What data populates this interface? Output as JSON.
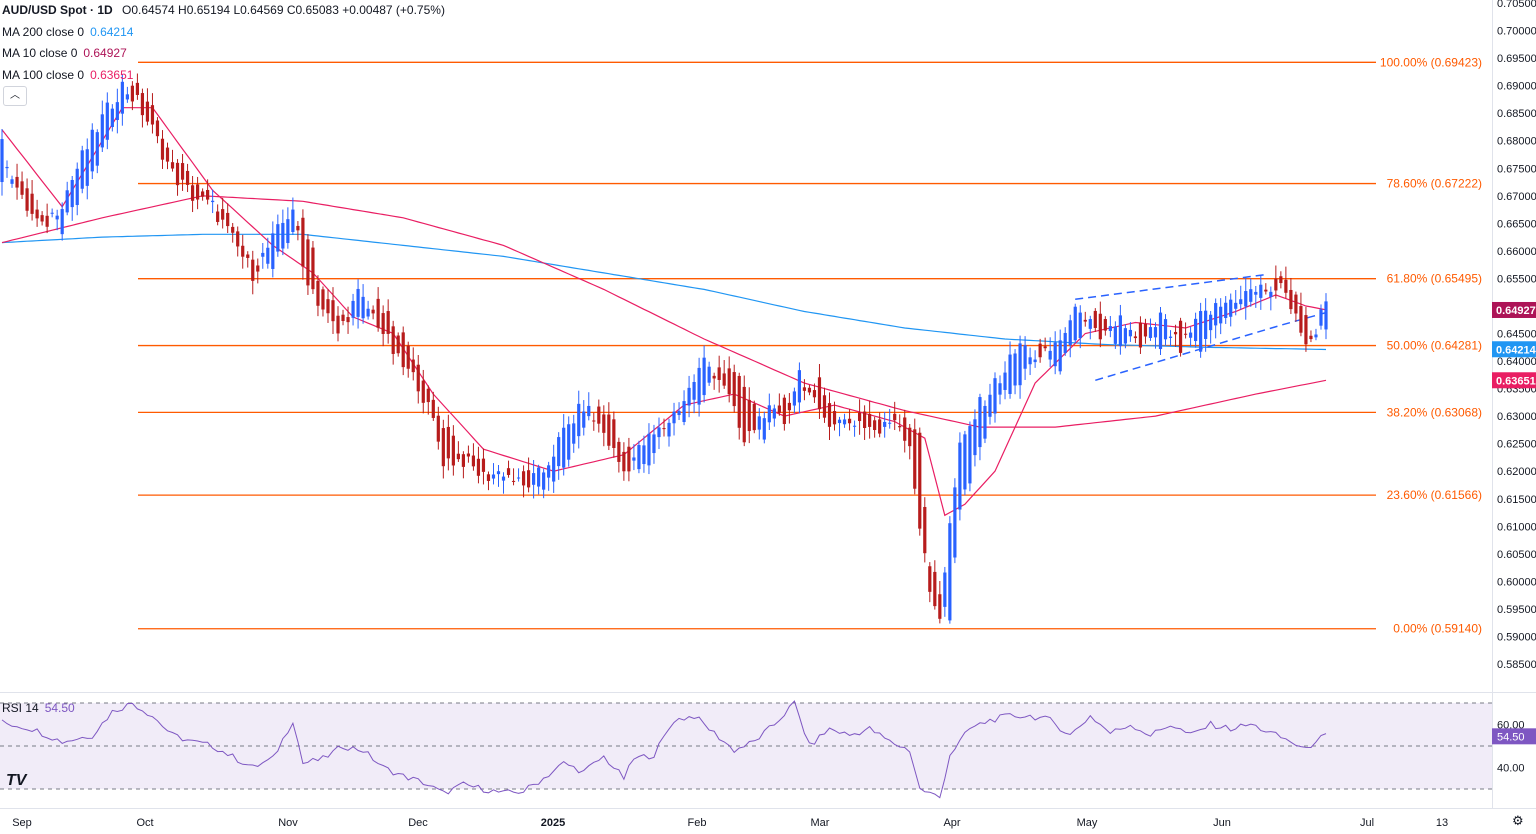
{
  "header": {
    "symbol_label": "AUD/USD Spot · 1D",
    "ohlc": "O0.64574  H0.65194  L0.64569  C0.65083  +0.00487 (+0.75%)",
    "indicators": [
      {
        "label": "MA 200 close 0",
        "value": "0.64214",
        "color": "#2196f3"
      },
      {
        "label": "MA 10 close 0",
        "value": "0.64927",
        "color": "#e91e63"
      },
      {
        "label": "MA 100 close 0",
        "value": "0.63651",
        "color": "#e91e63"
      }
    ],
    "collapse_glyph": "︿"
  },
  "rsi_header": {
    "label": "RSI 14",
    "value": "54.50"
  },
  "colors": {
    "up": "#2962ff",
    "down": "#b71c1c",
    "fib": "#ff5a00",
    "ma200": "#2196f3",
    "ma10": "#e91e63",
    "ma100": "#e91e63",
    "rsi": "#7e57c2",
    "rsi_band": "#ede7f6"
  },
  "tv_logo": "TV",
  "chart_data": [
    {
      "type": "candlestick",
      "title": "AUD/USD Spot · 1D",
      "y_axis_ticks": [
        "0.70500",
        "0.70000",
        "0.69500",
        "0.69000",
        "0.68500",
        "0.68000",
        "0.67500",
        "0.67000",
        "0.66500",
        "0.66000",
        "0.65500",
        "0.65000",
        "0.64500",
        "0.64000",
        "0.63500",
        "0.63000",
        "0.62500",
        "0.62000",
        "0.61500",
        "0.61000",
        "0.60500",
        "0.60000",
        "0.59500",
        "0.59000",
        "0.58500",
        "0.58000"
      ],
      "ylim": [
        0.5795,
        0.706
      ],
      "x_axis_labels": [
        "Sep",
        "Oct",
        "Nov",
        "Dec",
        "2025",
        "Feb",
        "Mar",
        "Apr",
        "May",
        "Jun",
        "Jul",
        "13"
      ],
      "fib_levels": [
        {
          "label": "100.00% (0.69423)",
          "value": 0.69423
        },
        {
          "label": "78.60% (0.67222)",
          "value": 0.67222
        },
        {
          "label": "61.80% (0.65495)",
          "value": 0.65495
        },
        {
          "label": "50.00% (0.64281)",
          "value": 0.64281
        },
        {
          "label": "38.20% (0.63068)",
          "value": 0.63068
        },
        {
          "label": "23.60% (0.61566)",
          "value": 0.61566
        },
        {
          "label": "0.00% (0.59140)",
          "value": 0.5914
        }
      ],
      "price_tags": [
        {
          "text": "0.64927",
          "value": 0.64927,
          "color": "#ad1457"
        },
        {
          "text": "0.64214",
          "value": 0.64214,
          "color": "#2196f3"
        },
        {
          "text": "0.63651",
          "value": 0.63651,
          "color": "#e91e63"
        }
      ],
      "candle_anchors": [
        [
          0,
          0.674,
          0.679
        ],
        [
          4,
          0.673,
          0.669
        ],
        [
          8,
          0.667,
          0.664
        ],
        [
          12,
          0.664,
          0.669
        ],
        [
          16,
          0.67,
          0.677
        ],
        [
          20,
          0.678,
          0.684
        ],
        [
          24,
          0.686,
          0.69
        ],
        [
          27,
          0.692,
          0.687
        ],
        [
          30,
          0.685,
          0.682
        ],
        [
          34,
          0.677,
          0.674
        ],
        [
          38,
          0.672,
          0.67
        ],
        [
          42,
          0.669,
          0.668
        ],
        [
          46,
          0.665,
          0.662
        ],
        [
          50,
          0.659,
          0.656
        ],
        [
          54,
          0.657,
          0.662
        ],
        [
          58,
          0.664,
          0.668
        ],
        [
          60,
          0.667,
          0.657
        ],
        [
          63,
          0.656,
          0.651
        ],
        [
          67,
          0.649,
          0.645
        ],
        [
          71,
          0.648,
          0.652
        ],
        [
          75,
          0.651,
          0.647
        ],
        [
          79,
          0.646,
          0.64
        ],
        [
          83,
          0.64,
          0.636
        ],
        [
          86,
          0.633,
          0.629
        ],
        [
          88,
          0.628,
          0.622
        ],
        [
          92,
          0.623,
          0.622
        ],
        [
          96,
          0.621,
          0.619
        ],
        [
          100,
          0.619,
          0.62
        ],
        [
          104,
          0.62,
          0.617
        ],
        [
          108,
          0.616,
          0.62
        ],
        [
          112,
          0.622,
          0.627
        ],
        [
          116,
          0.628,
          0.632
        ],
        [
          120,
          0.631,
          0.627
        ],
        [
          124,
          0.625,
          0.62
        ],
        [
          128,
          0.62,
          0.625
        ],
        [
          132,
          0.627,
          0.628
        ],
        [
          136,
          0.63,
          0.633
        ],
        [
          140,
          0.634,
          0.64
        ],
        [
          144,
          0.639,
          0.636
        ],
        [
          148,
          0.635,
          0.625
        ],
        [
          152,
          0.627,
          0.631
        ],
        [
          156,
          0.632,
          0.629
        ],
        [
          159,
          0.633,
          0.638
        ],
        [
          163,
          0.637,
          0.63
        ],
        [
          167,
          0.628,
          0.629
        ],
        [
          171,
          0.63,
          0.629
        ],
        [
          175,
          0.629,
          0.627
        ],
        [
          178,
          0.629,
          0.63
        ],
        [
          181,
          0.628,
          0.625
        ],
        [
          183,
          0.626,
          0.61
        ],
        [
          185,
          0.604,
          0.598
        ],
        [
          187,
          0.597,
          0.594
        ],
        [
          189,
          0.594,
          0.61
        ],
        [
          191,
          0.614,
          0.624
        ],
        [
          195,
          0.624,
          0.632
        ],
        [
          199,
          0.634,
          0.637
        ],
        [
          203,
          0.636,
          0.643
        ],
        [
          207,
          0.642,
          0.64
        ],
        [
          211,
          0.639,
          0.644
        ],
        [
          215,
          0.645,
          0.65
        ],
        [
          219,
          0.649,
          0.643
        ],
        [
          223,
          0.642,
          0.648
        ],
        [
          227,
          0.647,
          0.642
        ],
        [
          231,
          0.642,
          0.648
        ],
        [
          235,
          0.647,
          0.642
        ],
        [
          239,
          0.642,
          0.648
        ],
        [
          243,
          0.648,
          0.65
        ],
        [
          247,
          0.649,
          0.652
        ],
        [
          251,
          0.652,
          0.653
        ],
        [
          255,
          0.654,
          0.653
        ],
        [
          258,
          0.653,
          0.649
        ],
        [
          260,
          0.648,
          0.642
        ],
        [
          262,
          0.644,
          0.646
        ],
        [
          264,
          0.646,
          0.651
        ]
      ]
    },
    {
      "type": "line",
      "title": "RSI 14",
      "y_axis_ticks": [
        "60.00",
        "40.00"
      ],
      "ylim": [
        20,
        80
      ],
      "current_value": "54.50",
      "bands": [
        70,
        50,
        30
      ],
      "anchors": [
        [
          0,
          61
        ],
        [
          6,
          58
        ],
        [
          12,
          52
        ],
        [
          18,
          55
        ],
        [
          22,
          66
        ],
        [
          26,
          70
        ],
        [
          30,
          64
        ],
        [
          34,
          55
        ],
        [
          38,
          52
        ],
        [
          42,
          50
        ],
        [
          46,
          45
        ],
        [
          50,
          40
        ],
        [
          54,
          44
        ],
        [
          58,
          62
        ],
        [
          60,
          42
        ],
        [
          64,
          44
        ],
        [
          68,
          50
        ],
        [
          72,
          48
        ],
        [
          76,
          40
        ],
        [
          80,
          36
        ],
        [
          84,
          33
        ],
        [
          88,
          28
        ],
        [
          92,
          32
        ],
        [
          96,
          30
        ],
        [
          100,
          28
        ],
        [
          104,
          29
        ],
        [
          108,
          35
        ],
        [
          112,
          42
        ],
        [
          116,
          38
        ],
        [
          120,
          45
        ],
        [
          124,
          35
        ],
        [
          126,
          44
        ],
        [
          130,
          46
        ],
        [
          134,
          62
        ],
        [
          138,
          64
        ],
        [
          142,
          56
        ],
        [
          146,
          48
        ],
        [
          150,
          52
        ],
        [
          154,
          60
        ],
        [
          158,
          70
        ],
        [
          161,
          50
        ],
        [
          165,
          58
        ],
        [
          169,
          55
        ],
        [
          173,
          58
        ],
        [
          177,
          52
        ],
        [
          181,
          48
        ],
        [
          183,
          30
        ],
        [
          185,
          28
        ],
        [
          187,
          26
        ],
        [
          189,
          46
        ],
        [
          193,
          58
        ],
        [
          197,
          62
        ],
        [
          201,
          64
        ],
        [
          205,
          64
        ],
        [
          209,
          62
        ],
        [
          213,
          55
        ],
        [
          217,
          64
        ],
        [
          221,
          56
        ],
        [
          225,
          60
        ],
        [
          229,
          55
        ],
        [
          233,
          60
        ],
        [
          237,
          55
        ],
        [
          241,
          60
        ],
        [
          245,
          58
        ],
        [
          249,
          60
        ],
        [
          253,
          56
        ],
        [
          257,
          52
        ],
        [
          260,
          48
        ],
        [
          262,
          53
        ],
        [
          264,
          54.5
        ]
      ],
      "ma10_anchors": [
        [
          0,
          0.682
        ],
        [
          12,
          0.668
        ],
        [
          24,
          0.686
        ],
        [
          30,
          0.686
        ],
        [
          42,
          0.671
        ],
        [
          54,
          0.661
        ],
        [
          62,
          0.656
        ],
        [
          70,
          0.648
        ],
        [
          78,
          0.645
        ],
        [
          86,
          0.634
        ],
        [
          96,
          0.624
        ],
        [
          110,
          0.62
        ],
        [
          124,
          0.623
        ],
        [
          136,
          0.632
        ],
        [
          146,
          0.634
        ],
        [
          156,
          0.63
        ],
        [
          166,
          0.632
        ],
        [
          178,
          0.629
        ],
        [
          184,
          0.626
        ],
        [
          188,
          0.612
        ],
        [
          192,
          0.614
        ],
        [
          198,
          0.62
        ],
        [
          206,
          0.636
        ],
        [
          216,
          0.645
        ],
        [
          226,
          0.647
        ],
        [
          236,
          0.646
        ],
        [
          246,
          0.649
        ],
        [
          254,
          0.652
        ],
        [
          260,
          0.65
        ],
        [
          264,
          0.6493
        ]
      ],
      "ma100_anchors": [
        [
          0,
          0.6615
        ],
        [
          20,
          0.666
        ],
        [
          40,
          0.67
        ],
        [
          60,
          0.669
        ],
        [
          80,
          0.666
        ],
        [
          100,
          0.661
        ],
        [
          120,
          0.653
        ],
        [
          140,
          0.644
        ],
        [
          160,
          0.636
        ],
        [
          180,
          0.631
        ],
        [
          195,
          0.628
        ],
        [
          210,
          0.628
        ],
        [
          230,
          0.63
        ],
        [
          250,
          0.634
        ],
        [
          264,
          0.6365
        ]
      ],
      "ma200_anchors": [
        [
          0,
          0.6615
        ],
        [
          20,
          0.6625
        ],
        [
          40,
          0.663
        ],
        [
          60,
          0.663
        ],
        [
          80,
          0.661
        ],
        [
          100,
          0.659
        ],
        [
          120,
          0.656
        ],
        [
          140,
          0.653
        ],
        [
          160,
          0.649
        ],
        [
          180,
          0.646
        ],
        [
          200,
          0.644
        ],
        [
          220,
          0.643
        ],
        [
          240,
          0.6425
        ],
        [
          264,
          0.6421
        ]
      ],
      "channel_upper": [
        [
          214,
          0.6512
        ],
        [
          252,
          0.6557
        ]
      ],
      "channel_lower": [
        [
          218,
          0.6365
        ],
        [
          255,
          0.6465
        ],
        [
          264,
          0.6488
        ]
      ]
    }
  ]
}
